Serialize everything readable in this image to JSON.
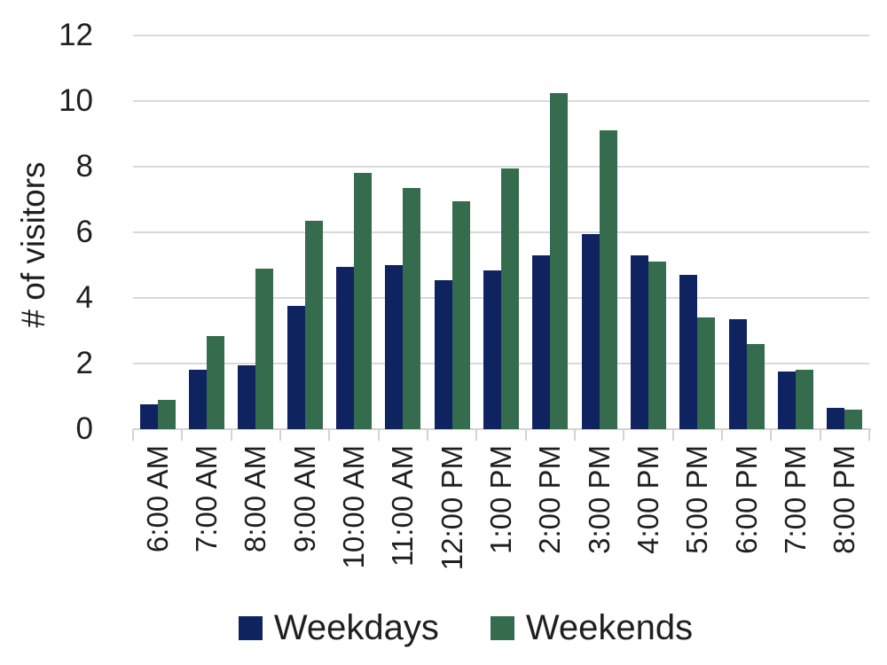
{
  "chart_data": {
    "type": "bar",
    "title": "",
    "xlabel": "",
    "ylabel": "# of visitors",
    "categories": [
      "6:00 AM",
      "7:00 AM",
      "8:00 AM",
      "9:00 AM",
      "10:00 AM",
      "11:00 AM",
      "12:00 PM",
      "1:00 PM",
      "2:00 PM",
      "3:00 PM",
      "4:00 PM",
      "5:00 PM",
      "6:00 PM",
      "7:00 PM",
      "8:00 PM"
    ],
    "series": [
      {
        "name": "Weekdays",
        "color": "#0f2361",
        "values": [
          0.75,
          1.8,
          1.95,
          3.75,
          4.95,
          5.0,
          4.55,
          4.85,
          5.3,
          5.95,
          5.3,
          4.7,
          3.35,
          1.75,
          0.65
        ]
      },
      {
        "name": "Weekends",
        "color": "#356c4e",
        "values": [
          0.9,
          2.85,
          4.9,
          6.35,
          7.8,
          7.35,
          6.95,
          7.95,
          10.25,
          9.1,
          5.1,
          3.4,
          2.6,
          1.8,
          0.6
        ]
      }
    ],
    "yticks": [
      0,
      2,
      4,
      6,
      8,
      10,
      12
    ],
    "ylim": [
      0,
      12
    ],
    "grid": true,
    "gridline_color": "#d9d9d9",
    "legend_position": "bottom"
  }
}
